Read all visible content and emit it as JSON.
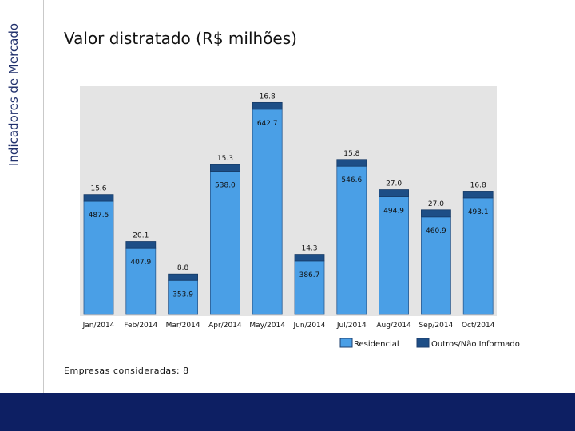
{
  "side_label": "Indicadores de Mercado",
  "title": "Valor distratado (R$ milhões)",
  "note": "Empresas consideradas: 8",
  "page_number": "17",
  "colors": {
    "residencial": "#4a9fe6",
    "outros": "#1d4e86",
    "navy": "#0d1f63",
    "plot_bg": "#e4e4e4"
  },
  "chart_data": {
    "type": "bar",
    "stacked": true,
    "title": "Valor distratado (R$ milhões)",
    "categories": [
      "Jan/2014",
      "Feb/2014",
      "Mar/2014",
      "Apr/2014",
      "May/2014",
      "Jun/2014",
      "Jul/2014",
      "Aug/2014",
      "Sep/2014",
      "Oct/2014"
    ],
    "series": [
      {
        "name": "Residencial",
        "values": [
          487.5,
          407.9,
          353.9,
          538.0,
          642.7,
          386.7,
          546.6,
          494.9,
          460.9,
          493.1
        ],
        "labels": [
          "487.5",
          "407.9",
          "353.9",
          "538.0",
          "642.7",
          "386.7",
          "546.6",
          "494.9",
          "460.9",
          "493.1"
        ]
      },
      {
        "name": "Outros/Não Informado",
        "values": [
          15.6,
          20.1,
          8.8,
          15.3,
          16.8,
          14.3,
          15.8,
          27.0,
          27.0,
          16.8
        ],
        "labels": [
          "15.6",
          "20.1",
          "8.8",
          "15.3",
          "16.8",
          "14.3",
          "15.8",
          "27.0",
          "27.0",
          "16.8"
        ]
      }
    ],
    "legend": [
      "Residencial",
      "Outros/Não Informado"
    ],
    "legend_position": "bottom-right",
    "grid": false
  }
}
